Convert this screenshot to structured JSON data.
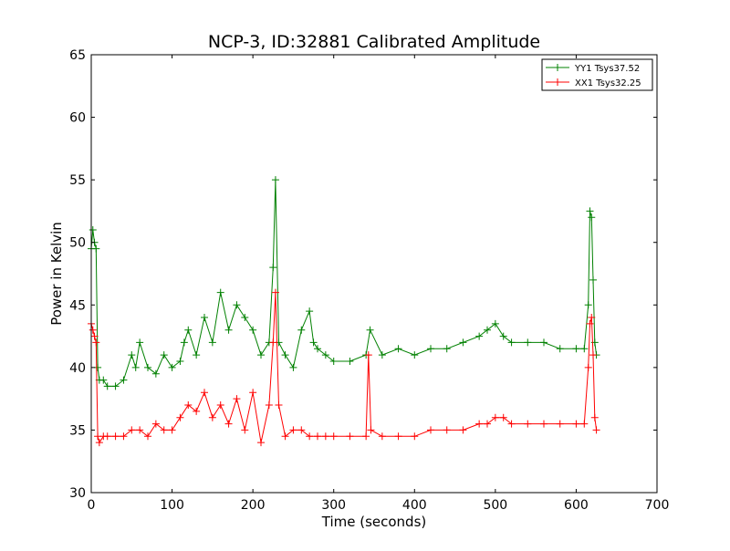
{
  "chart_data": {
    "type": "line",
    "title": "NCP-3, ID:32881 Calibrated Amplitude",
    "xlabel": "Time (seconds)",
    "ylabel": "Power in Kelvin",
    "xlim": [
      0,
      700
    ],
    "ylim": [
      30,
      65
    ],
    "x_ticks": [
      0,
      100,
      200,
      300,
      400,
      500,
      600,
      700
    ],
    "y_ticks": [
      30,
      35,
      40,
      45,
      50,
      55,
      60,
      65
    ],
    "grid": false,
    "legend_position": "top-right",
    "marker": "+",
    "series": [
      {
        "name": "YY1 Tsys37.52",
        "color": "#008000",
        "x": [
          0,
          2,
          4,
          6,
          8,
          10,
          15,
          20,
          30,
          40,
          50,
          55,
          60,
          70,
          80,
          90,
          100,
          110,
          115,
          120,
          130,
          140,
          150,
          160,
          170,
          180,
          190,
          200,
          210,
          220,
          225,
          228,
          232,
          240,
          250,
          260,
          270,
          275,
          280,
          290,
          300,
          320,
          340,
          345,
          360,
          380,
          400,
          420,
          440,
          460,
          480,
          490,
          500,
          510,
          520,
          540,
          560,
          580,
          600,
          610,
          615,
          617,
          619,
          621,
          623,
          625
        ],
        "y": [
          49.5,
          51.0,
          50.0,
          49.5,
          40.0,
          39.0,
          39.0,
          38.5,
          38.5,
          39.0,
          41.0,
          40.0,
          42.0,
          40.0,
          39.5,
          41.0,
          40.0,
          40.5,
          42.0,
          43.0,
          41.0,
          44.0,
          42.0,
          46.0,
          43.0,
          45.0,
          44.0,
          43.0,
          41.0,
          42.0,
          48.0,
          55.0,
          42.0,
          41.0,
          40.0,
          43.0,
          44.5,
          42.0,
          41.5,
          41.0,
          40.5,
          40.5,
          41.0,
          43.0,
          41.0,
          41.5,
          41.0,
          41.5,
          41.5,
          42.0,
          42.5,
          43.0,
          43.5,
          42.5,
          42.0,
          42.0,
          42.0,
          41.5,
          41.5,
          41.5,
          45.0,
          52.5,
          52.0,
          47.0,
          42.0,
          41.0
        ]
      },
      {
        "name": "XX1 Tsys32.25",
        "color": "#ff0000",
        "x": [
          0,
          2,
          4,
          6,
          8,
          10,
          15,
          20,
          30,
          40,
          50,
          60,
          70,
          80,
          90,
          100,
          110,
          120,
          130,
          140,
          150,
          160,
          170,
          180,
          190,
          200,
          210,
          220,
          225,
          228,
          232,
          240,
          250,
          260,
          270,
          280,
          290,
          300,
          320,
          340,
          343,
          346,
          360,
          380,
          400,
          420,
          440,
          460,
          480,
          490,
          500,
          510,
          520,
          540,
          560,
          580,
          600,
          610,
          615,
          617,
          619,
          621,
          623,
          625
        ],
        "y": [
          43.5,
          43.0,
          42.5,
          42.0,
          34.5,
          34.0,
          34.5,
          34.5,
          34.5,
          34.5,
          35.0,
          35.0,
          34.5,
          35.5,
          35.0,
          35.0,
          36.0,
          37.0,
          36.5,
          38.0,
          36.0,
          37.0,
          35.5,
          37.5,
          35.0,
          38.0,
          34.0,
          37.0,
          42.0,
          46.0,
          37.0,
          34.5,
          35.0,
          35.0,
          34.5,
          34.5,
          34.5,
          34.5,
          34.5,
          34.5,
          41.0,
          35.0,
          34.5,
          34.5,
          34.5,
          35.0,
          35.0,
          35.0,
          35.5,
          35.5,
          36.0,
          36.0,
          35.5,
          35.5,
          35.5,
          35.5,
          35.5,
          35.5,
          40.0,
          43.5,
          44.0,
          41.0,
          36.0,
          35.0
        ]
      }
    ]
  }
}
